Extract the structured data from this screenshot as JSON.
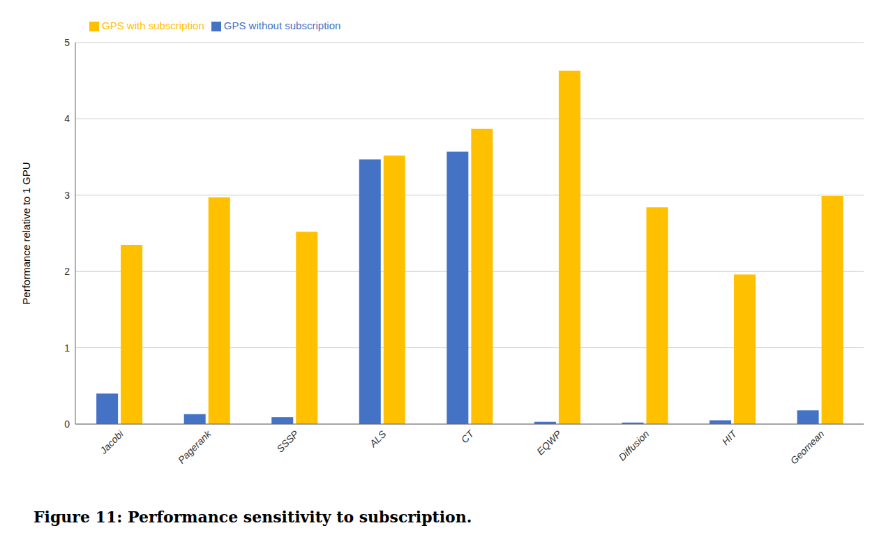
{
  "chart_data": {
    "type": "bar",
    "title": "Figure 11: Performance sensitivity to subscription.",
    "categories": [
      "Jacobi",
      "Pagerank",
      "SSSP",
      "ALS",
      "CT",
      "EQWP",
      "Diffusion",
      "HIT",
      "Geomean"
    ],
    "series": [
      {
        "name": "GPS without subscription",
        "color": "#4472C4",
        "values": [
          0.4,
          0.13,
          0.09,
          3.47,
          3.57,
          0.03,
          0.02,
          0.05,
          0.18
        ]
      },
      {
        "name": "GPS with subscription",
        "color": "#FFC000",
        "values": [
          2.35,
          2.97,
          2.52,
          3.52,
          3.87,
          4.63,
          2.84,
          1.96,
          2.99
        ]
      }
    ],
    "ylabel": "Performance relative to 1 GPU",
    "ylim": [
      0,
      5
    ],
    "yticks": [
      0,
      1,
      2,
      3,
      4,
      5
    ],
    "grid": true,
    "legend": "top"
  }
}
